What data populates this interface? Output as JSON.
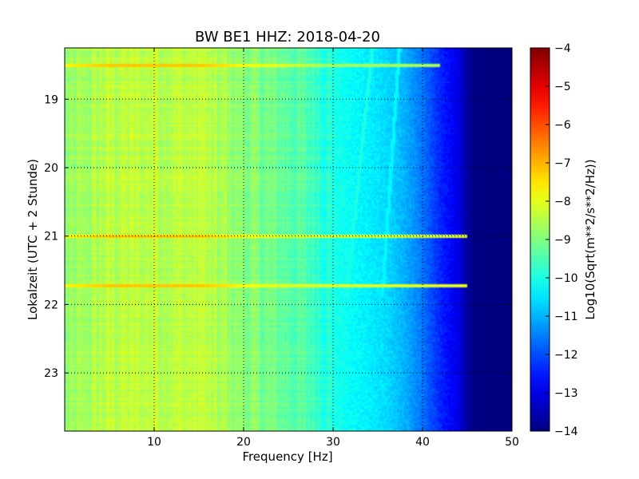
{
  "chart_data": {
    "type": "heatmap",
    "title": "BW BE1 HHZ: 2018-04-20",
    "xlabel": "Frequency [Hz]",
    "ylabel": "Lokalzeit (UTC + 2 Stunde)",
    "xlim": [
      0,
      50
    ],
    "ylim": [
      18.25,
      23.85
    ],
    "y_inverted": true,
    "x_ticks": [
      10,
      20,
      30,
      40,
      50
    ],
    "x_tick_labels": [
      "10",
      "20",
      "30",
      "40",
      "50"
    ],
    "y_ticks": [
      19,
      20,
      21,
      22,
      23
    ],
    "y_tick_labels": [
      "19",
      "20",
      "21",
      "22",
      "23"
    ],
    "grid": true,
    "colormap": "jet",
    "colorbar": {
      "label": "Log10(Sqrt(m**2/s**2/Hz))",
      "range": [
        -14,
        -4
      ],
      "ticks": [
        -4,
        -5,
        -6,
        -7,
        -8,
        -9,
        -10,
        -11,
        -12,
        -13,
        -14
      ],
      "tick_labels": [
        "−4",
        "−5",
        "−6",
        "−7",
        "−8",
        "−9",
        "−10",
        "−11",
        "−12",
        "−13",
        "−14"
      ]
    },
    "spectral_profile": {
      "frequency_hz": [
        0,
        5,
        10,
        15,
        20,
        25,
        28,
        30,
        33,
        36,
        38,
        40,
        42,
        44,
        45,
        46,
        50
      ],
      "log10_amplitude": [
        -8.9,
        -8.4,
        -8.4,
        -8.4,
        -8.9,
        -9.3,
        -9.6,
        -10.0,
        -10.3,
        -10.6,
        -11.0,
        -11.6,
        -12.4,
        -13.0,
        -13.7,
        -14,
        -14
      ]
    },
    "horizontal_bands": [
      {
        "time_h": 18.5,
        "log10_amplitude": -8.6,
        "max_frequency_hz": 42
      },
      {
        "time_h": 21.0,
        "log10_amplitude": -8.1,
        "max_frequency_hz": 45
      },
      {
        "time_h": 21.73,
        "log10_amplitude": -8.0,
        "max_frequency_hz": 45
      }
    ],
    "vertical_lines": [
      {
        "frequency_hz": 10,
        "log10_amplitude": -8.2
      },
      {
        "frequency_hz": 15.5,
        "log10_amplitude": -8.3
      },
      {
        "frequency_hz": 18,
        "log10_amplitude": -8.5
      }
    ],
    "drifting_lines": [
      {
        "frequency_start_hz": 34.5,
        "frequency_end_hz": 31.5,
        "time_start_h": 18.1,
        "time_end_h": 21.9,
        "log10_amplitude": -10.0
      },
      {
        "frequency_start_hz": 37.5,
        "frequency_end_hz": 35.5,
        "time_start_h": 18.1,
        "time_end_h": 21.9,
        "log10_amplitude": -10.3
      }
    ]
  }
}
